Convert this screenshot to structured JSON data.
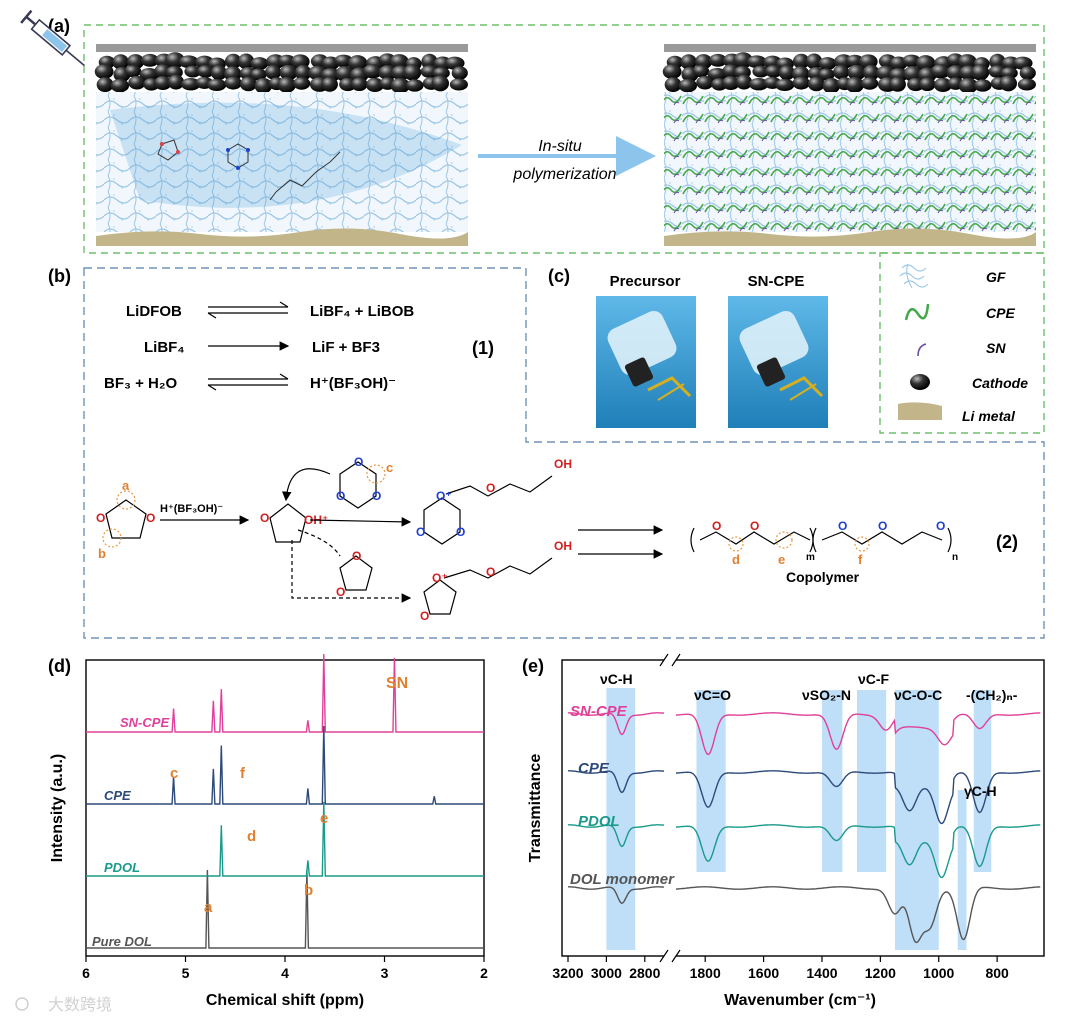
{
  "panel_a": {
    "label": "(a)",
    "arrow_text_line1": "In-situ",
    "arrow_text_line2": "polymerization"
  },
  "legend": {
    "items": [
      "GF",
      "CPE",
      "SN",
      "Cathode",
      "Li metal"
    ]
  },
  "panel_b": {
    "label": "(b)",
    "eq1_left": "LiDFOB",
    "eq1_right": "LiBF₄ + LiBOB",
    "eq2_left": "LiBF₄",
    "eq2_right": "LiF + BF3",
    "eq3_left": "BF₃ + H₂O",
    "eq3_right": "H⁺(BF₃OH)⁻",
    "group1_label": "(1)",
    "group2_label": "(2)",
    "catalyst": "H⁺(BF₃OH)⁻",
    "oh_plus": "OH⁺",
    "oh": "OH",
    "copolymer": "Copolymer",
    "site_labels": {
      "a": "a",
      "b": "b",
      "c": "c",
      "d": "d",
      "e": "e",
      "f": "f",
      "m": "m",
      "n": "n"
    }
  },
  "panel_c": {
    "label": "(c)",
    "left_title": "Precursor",
    "right_title": "SN-CPE"
  },
  "panel_d": {
    "label": "(d)",
    "xlabel": "Chemical shift (ppm)",
    "ylabel": "Intensity (a.u.)",
    "series_labels": [
      "SN-CPE",
      "CPE",
      "PDOL",
      "Pure DOL"
    ],
    "peak_labels": [
      "SN",
      "c",
      "f",
      "d",
      "e",
      "a",
      "b"
    ]
  },
  "panel_e": {
    "label": "(e)",
    "xlabel": "Wavenumber (cm⁻¹)",
    "ylabel": "Transmittance",
    "series_labels": [
      "SN-CPE",
      "CPE",
      "PDOL",
      "DOL monomer"
    ],
    "band_labels": [
      "νC-H",
      "νC=O",
      "νSO₂-N",
      "νC-F",
      "νC-O-C",
      "-(CH₂)ₙ-",
      "γC-H"
    ]
  },
  "watermark": "大数跨境",
  "chart_data": [
    {
      "type": "line",
      "title": "(d)",
      "xlabel": "Chemical shift (ppm)",
      "ylabel": "Intensity (a.u.)",
      "xlim": [
        6,
        2
      ],
      "x_ticks": [
        6,
        5,
        4,
        3,
        2
      ],
      "series": [
        {
          "name": "Pure DOL",
          "color": "#555555",
          "peaks": [
            [
              4.78,
              1.0
            ],
            [
              3.78,
              1.0
            ]
          ]
        },
        {
          "name": "PDOL",
          "color": "#1a9a8a",
          "peaks": [
            [
              4.64,
              0.65
            ],
            [
              3.61,
              0.95
            ],
            [
              3.77,
              0.2
            ]
          ]
        },
        {
          "name": "CPE",
          "color": "#2d4a7a",
          "peaks": [
            [
              5.12,
              0.35
            ],
            [
              4.72,
              0.45
            ],
            [
              4.64,
              0.75
            ],
            [
              3.61,
              1.0
            ],
            [
              3.77,
              0.2
            ],
            [
              2.5,
              0.1
            ]
          ]
        },
        {
          "name": "SN-CPE",
          "color": "#e0409a",
          "peaks": [
            [
              5.12,
              0.3
            ],
            [
              4.72,
              0.4
            ],
            [
              4.64,
              0.55
            ],
            [
              3.61,
              1.0
            ],
            [
              3.77,
              0.15
            ],
            [
              2.9,
              0.95
            ]
          ]
        }
      ],
      "peak_annotations": [
        {
          "label": "SN",
          "ppm": 2.9
        },
        {
          "label": "c",
          "ppm": 5.12
        },
        {
          "label": "f",
          "ppm": 4.72
        },
        {
          "label": "d",
          "ppm": 4.64
        },
        {
          "label": "e",
          "ppm": 3.61
        },
        {
          "label": "a",
          "ppm": 4.78
        },
        {
          "label": "b",
          "ppm": 3.78
        }
      ]
    },
    {
      "type": "line",
      "title": "(e)",
      "xlabel": "Wavenumber (cm⁻¹)",
      "ylabel": "Transmittance",
      "x_ticks": [
        3200,
        3000,
        2800,
        1800,
        1600,
        1400,
        1200,
        1000,
        800
      ],
      "axis_break": [
        2700,
        1900
      ],
      "bands": [
        {
          "label": "νC-H",
          "range": [
            3000,
            2850
          ]
        },
        {
          "label": "νC=O",
          "range": [
            1830,
            1730
          ]
        },
        {
          "label": "νSO₂-N",
          "range": [
            1400,
            1330
          ]
        },
        {
          "label": "νC-F",
          "range": [
            1280,
            1180
          ]
        },
        {
          "label": "νC-O-C",
          "range": [
            1150,
            1000
          ]
        },
        {
          "label": "γC-H",
          "range": [
            935,
            905
          ]
        },
        {
          "label": "-(CH₂)ₙ-",
          "range": [
            880,
            820
          ]
        }
      ],
      "series": [
        {
          "name": "SN-CPE",
          "color": "#e0409a",
          "dips": [
            [
              2920,
              0.4
            ],
            [
              1790,
              0.8
            ],
            [
              1350,
              0.7
            ],
            [
              1180,
              0.3
            ],
            [
              980,
              0.3
            ],
            [
              860,
              0.3
            ]
          ]
        },
        {
          "name": "CPE",
          "color": "#2d4a7a",
          "dips": [
            [
              2920,
              0.4
            ],
            [
              1790,
              0.7
            ],
            [
              1350,
              0.3
            ],
            [
              1100,
              0.5
            ],
            [
              990,
              0.7
            ],
            [
              860,
              0.8
            ]
          ]
        },
        {
          "name": "PDOL",
          "color": "#1a9a8a",
          "dips": [
            [
              2920,
              0.4
            ],
            [
              1790,
              0.7
            ],
            [
              1350,
              0.3
            ],
            [
              1100,
              0.5
            ],
            [
              990,
              0.7
            ],
            [
              860,
              0.8
            ]
          ]
        },
        {
          "name": "DOL monomer",
          "color": "#555555",
          "dips": [
            [
              2920,
              0.3
            ],
            [
              1150,
              0.5
            ],
            [
              1080,
              1.0
            ],
            [
              1030,
              0.7
            ],
            [
              915,
              1.0
            ]
          ]
        }
      ]
    }
  ]
}
